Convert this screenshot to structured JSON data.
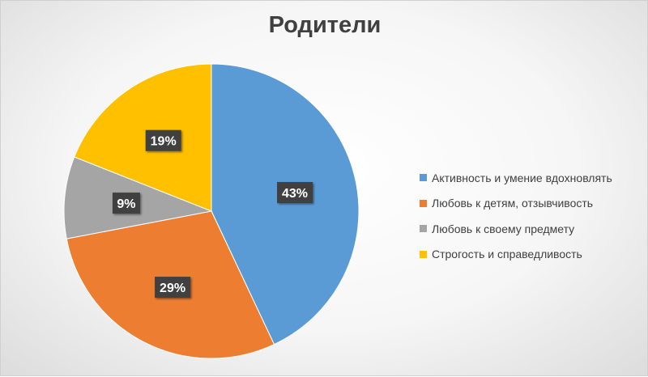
{
  "chart_data": {
    "type": "pie",
    "title": "Родители",
    "categories": [
      "Активность и умение вдохновлять",
      "Любовь к детям, отзывчивость",
      "Любовь к своему предмету",
      "Строгость и справедливость"
    ],
    "values": [
      43,
      29,
      9,
      19
    ],
    "labels": [
      "43%",
      "29%",
      "9%",
      "19%"
    ],
    "colors": [
      "#5B9BD5",
      "#ED7D31",
      "#A5A5A5",
      "#FFC000"
    ],
    "legend_position": "right",
    "start_angle_deg": 0,
    "direction": "clockwise"
  }
}
